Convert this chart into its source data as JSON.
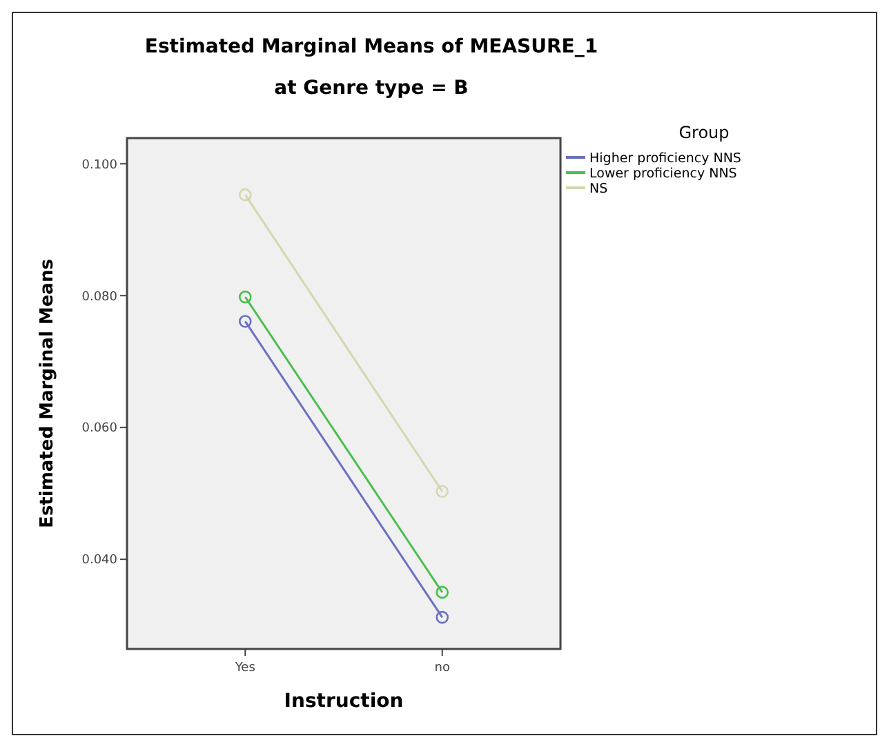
{
  "chart_data": {
    "type": "line",
    "title": "Estimated Marginal Means of MEASURE_1",
    "subtitle": "at Genre type = B",
    "xlabel": "Instruction",
    "ylabel": "Estimated Marginal Means",
    "legend_title": "Group",
    "legend": "right",
    "marker": "circle",
    "categories": [
      "Yes",
      "no"
    ],
    "ylim": [
      0.0264,
      0.1039
    ],
    "yticks": [
      {
        "value": 0.04,
        "label": "0.040"
      },
      {
        "value": 0.06,
        "label": "0.060"
      },
      {
        "value": 0.08,
        "label": "0.080"
      },
      {
        "value": 0.1,
        "label": "0.100"
      }
    ],
    "series": [
      {
        "name": "Higher proficiency NNS",
        "color": "#6b70c2",
        "values": [
          0.0761,
          0.0312
        ]
      },
      {
        "name": "Lower proficiency NNS",
        "color": "#4cbf50",
        "values": [
          0.0798,
          0.035
        ]
      },
      {
        "name": "NS",
        "color": "#d6d6ae",
        "values": [
          0.0953,
          0.0503
        ]
      }
    ]
  }
}
